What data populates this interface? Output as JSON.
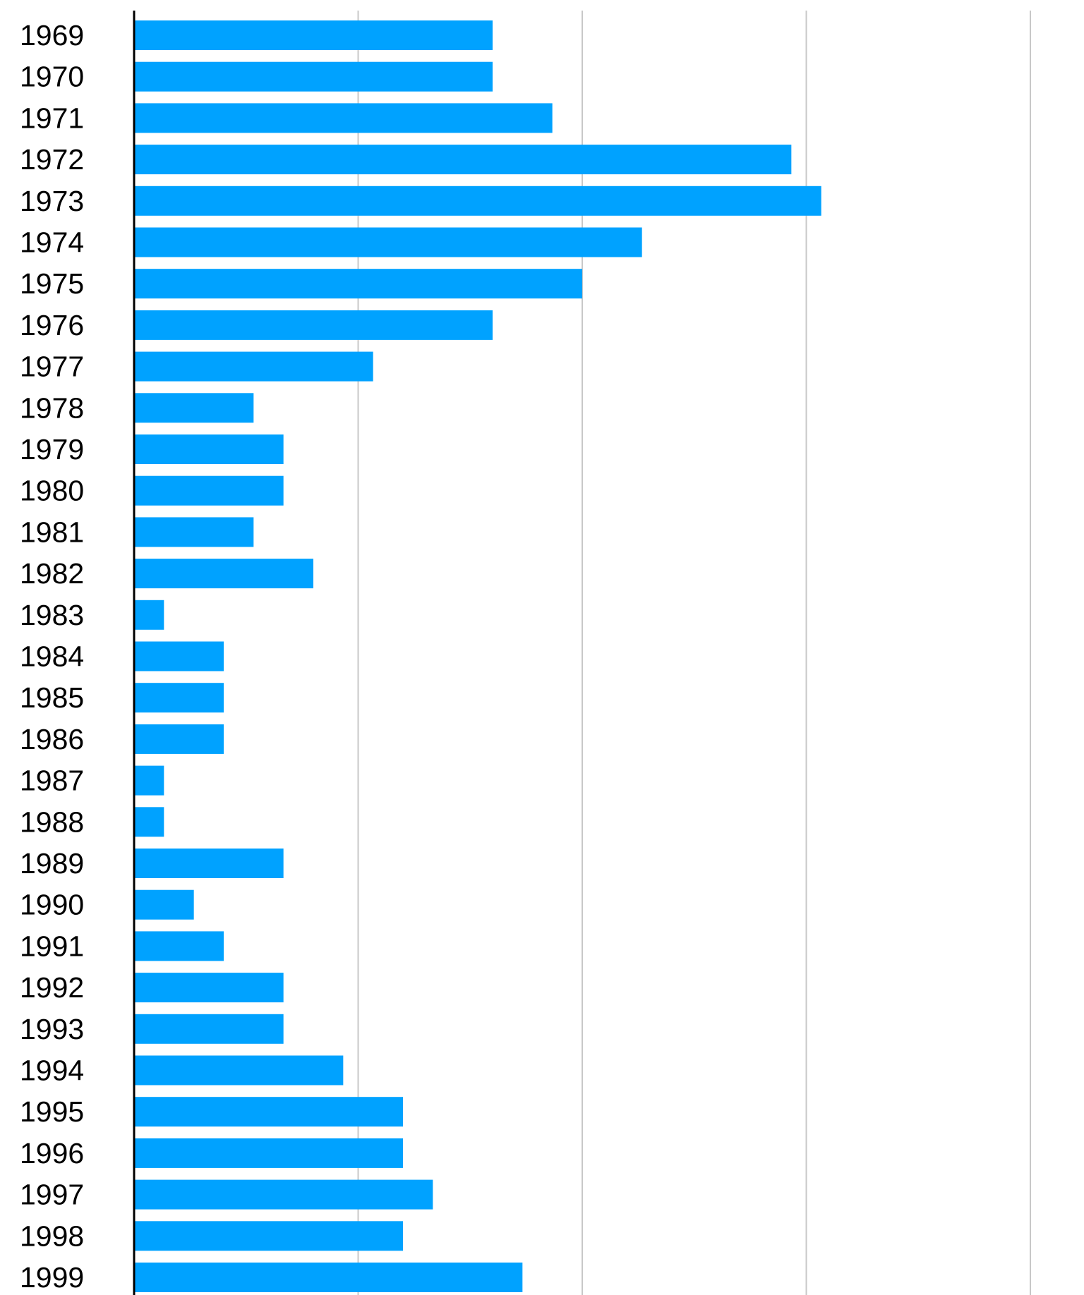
{
  "chart_data": {
    "type": "bar",
    "orientation": "horizontal",
    "categories": [
      "1969",
      "1970",
      "1971",
      "1972",
      "1973",
      "1974",
      "1975",
      "1976",
      "1977",
      "1978",
      "1979",
      "1980",
      "1981",
      "1982",
      "1983",
      "1984",
      "1985",
      "1986",
      "1987",
      "1988",
      "1989",
      "1990",
      "1991",
      "1992",
      "1993",
      "1994",
      "1995",
      "1996",
      "1997",
      "1998",
      "1999"
    ],
    "values": [
      12,
      12,
      14,
      22,
      23,
      17,
      15,
      12,
      8,
      4,
      5,
      5,
      4,
      6,
      1,
      3,
      3,
      3,
      1,
      1,
      5,
      2,
      3,
      5,
      5,
      7,
      9,
      9,
      10,
      9,
      13
    ],
    "xlim": [
      0,
      30
    ],
    "x_gridlines": [
      7.5,
      15,
      22.5,
      30
    ],
    "grid": true,
    "legend": "none",
    "title": "",
    "xlabel": "",
    "ylabel": "",
    "bar_color": "#00a2ff",
    "grid_color": "#c8c8c8"
  }
}
